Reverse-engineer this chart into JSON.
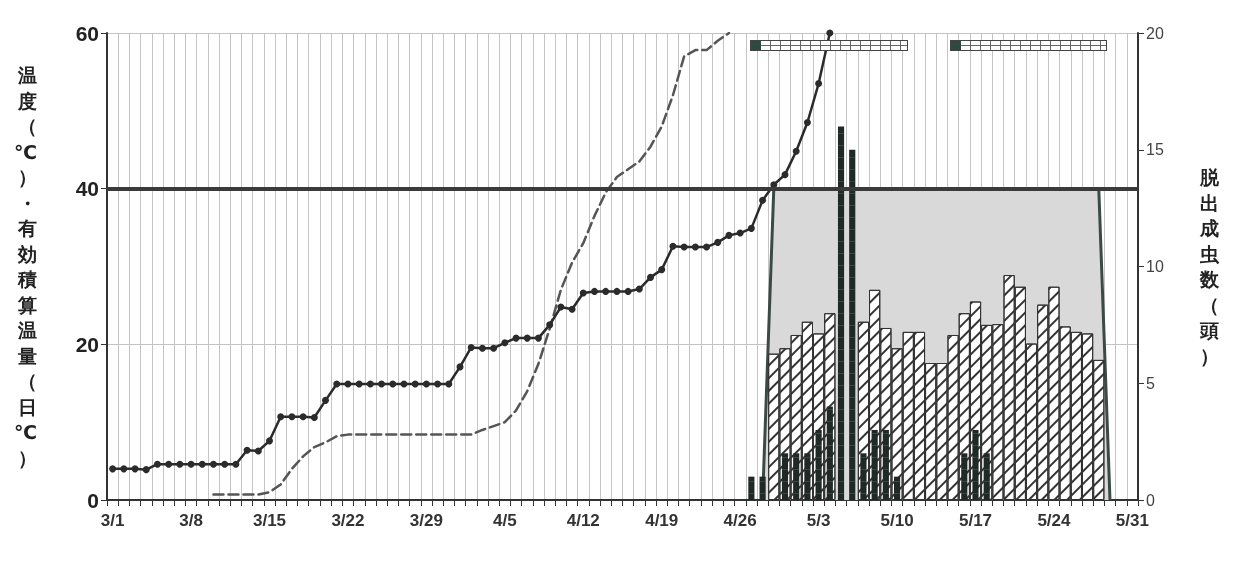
{
  "chart_data": {
    "type": "bar",
    "ylabel": "温度（℃）・有効積算温量（日℃）",
    "y2label": "脱出成虫数（頭）",
    "categories": [
      "3/1",
      null,
      null,
      null,
      null,
      null,
      null,
      "3/8",
      null,
      null,
      null,
      null,
      null,
      null,
      "3/15",
      null,
      null,
      null,
      null,
      null,
      null,
      "3/22",
      null,
      null,
      null,
      null,
      null,
      null,
      "3/29",
      null,
      null,
      null,
      null,
      null,
      null,
      "4/5",
      null,
      null,
      null,
      null,
      null,
      null,
      "4/12",
      null,
      null,
      null,
      null,
      null,
      null,
      "4/19",
      null,
      null,
      null,
      null,
      null,
      null,
      "4/26",
      null,
      null,
      null,
      null,
      null,
      null,
      "5/3",
      null,
      null,
      null,
      null,
      null,
      null,
      "5/10",
      null,
      null,
      null,
      null,
      null,
      null,
      "5/17",
      null,
      null,
      null,
      null,
      null,
      null,
      "5/24",
      null,
      null,
      null,
      null,
      null,
      null,
      "5/31"
    ],
    "series": [
      {
        "type": "area",
        "color": "#d9d9d9",
        "values": [
          null,
          null,
          null,
          null,
          null,
          null,
          null,
          null,
          null,
          null,
          null,
          null,
          null,
          null,
          null,
          null,
          null,
          null,
          null,
          null,
          null,
          null,
          null,
          null,
          null,
          null,
          null,
          null,
          null,
          null,
          null,
          null,
          null,
          null,
          null,
          null,
          null,
          null,
          null,
          null,
          null,
          null,
          null,
          null,
          null,
          null,
          null,
          null,
          null,
          null,
          null,
          null,
          null,
          null,
          null,
          null,
          null,
          null,
          0,
          40,
          40,
          40,
          40,
          40,
          40,
          null,
          null,
          40,
          40,
          40,
          40,
          40,
          40,
          40,
          40,
          40,
          40,
          40,
          40,
          40,
          40,
          40,
          40,
          40,
          40,
          40,
          40,
          40,
          40,
          0,
          null,
          null
        ]
      },
      {
        "color": "#ffffff",
        "values": [
          null,
          null,
          null,
          null,
          null,
          null,
          null,
          null,
          null,
          null,
          null,
          null,
          null,
          null,
          null,
          null,
          null,
          null,
          null,
          null,
          null,
          null,
          null,
          null,
          null,
          null,
          null,
          null,
          null,
          null,
          null,
          null,
          null,
          null,
          null,
          null,
          null,
          null,
          null,
          null,
          null,
          null,
          null,
          null,
          null,
          null,
          null,
          null,
          null,
          null,
          null,
          null,
          null,
          null,
          null,
          null,
          null,
          null,
          null,
          18.8,
          19.5,
          21.2,
          22.9,
          21.4,
          24.0,
          null,
          null,
          22.9,
          27.0,
          22.1,
          19.5,
          21.6,
          21.6,
          17.6,
          17.6,
          21.2,
          24.0,
          25.5,
          22.5,
          22.6,
          28.9,
          27.4,
          20.1,
          25.1,
          27.4,
          22.3,
          21.6,
          21.4,
          18.0,
          null,
          null,
          null
        ]
      },
      {
        "axis": "y2",
        "color": "#1f2a26",
        "values": [
          null,
          null,
          null,
          null,
          null,
          null,
          null,
          null,
          null,
          null,
          null,
          null,
          null,
          null,
          null,
          null,
          null,
          null,
          null,
          null,
          null,
          null,
          null,
          null,
          null,
          null,
          null,
          null,
          null,
          null,
          null,
          null,
          null,
          null,
          null,
          null,
          null,
          null,
          null,
          null,
          null,
          null,
          null,
          null,
          null,
          null,
          null,
          null,
          null,
          null,
          null,
          null,
          null,
          null,
          null,
          null,
          null,
          1,
          1,
          null,
          2,
          2,
          2,
          3,
          4,
          16,
          15,
          2,
          3,
          3,
          1,
          null,
          null,
          null,
          null,
          null,
          2,
          3,
          2,
          null,
          null,
          null,
          null,
          null,
          null,
          null,
          null,
          null,
          null,
          null,
          null,
          null
        ]
      },
      {
        "type": "line",
        "color": "#555555",
        "marker": "none",
        "line_style": "dashed",
        "values": [
          null,
          null,
          null,
          null,
          null,
          null,
          null,
          null,
          null,
          0.7,
          0.7,
          0.7,
          0.7,
          0.7,
          1.0,
          2.0,
          4.0,
          5.6,
          6.8,
          7.4,
          8.2,
          8.4,
          8.4,
          8.4,
          8.4,
          8.4,
          8.4,
          8.4,
          8.4,
          8.4,
          8.4,
          8.4,
          8.4,
          9.0,
          9.5,
          10.0,
          11.5,
          14.0,
          17.5,
          22.0,
          27.0,
          30.5,
          33.0,
          36.5,
          39.5,
          41.5,
          42.5,
          43.5,
          45.4,
          48.0,
          52.0,
          57.0,
          57.8,
          57.8,
          59.0,
          60,
          null,
          null,
          null,
          null,
          null,
          null,
          null,
          null,
          null,
          null,
          null,
          null,
          null,
          null,
          null,
          null,
          null,
          null,
          null,
          null,
          null,
          null,
          null,
          null,
          null,
          null,
          null,
          null,
          null,
          null,
          null,
          null,
          null,
          null,
          null,
          null
        ]
      },
      {
        "type": "line",
        "color": "#2b2b2b",
        "marker": "circle",
        "line_style": "solid",
        "values": [
          4.0,
          4.0,
          4.0,
          3.9,
          4.6,
          4.6,
          4.6,
          4.6,
          4.6,
          4.6,
          4.6,
          4.6,
          6.4,
          6.3,
          7.6,
          10.7,
          10.7,
          10.7,
          10.6,
          12.8,
          14.9,
          14.9,
          14.9,
          14.9,
          14.9,
          14.9,
          14.9,
          14.9,
          14.9,
          14.9,
          14.9,
          17.1,
          19.6,
          19.5,
          19.5,
          20.2,
          20.8,
          20.8,
          20.8,
          22.5,
          24.8,
          24.5,
          26.6,
          26.8,
          26.8,
          26.8,
          26.8,
          27.1,
          28.6,
          29.6,
          32.6,
          32.5,
          32.5,
          32.5,
          33.1,
          34.0,
          34.3,
          34.9,
          38.5,
          40.5,
          41.8,
          44.8,
          48.5,
          53.5,
          60,
          null,
          null,
          null,
          null,
          null,
          null,
          null,
          null,
          null,
          null,
          null,
          null,
          null,
          null,
          null,
          null,
          null,
          null,
          null,
          null,
          null,
          null,
          null,
          null,
          null,
          null,
          null
        ]
      }
    ],
    "ylim": [
      0,
      60
    ],
    "yticks": [
      0,
      20,
      40,
      60
    ],
    "y2lim": [
      0,
      20
    ],
    "y2ticks": [
      0,
      5,
      10,
      15,
      20
    ],
    "ref_lines": [
      {
        "axis": "y",
        "value": 40,
        "color": "#3a3a3a"
      }
    ],
    "grid": true
  }
}
